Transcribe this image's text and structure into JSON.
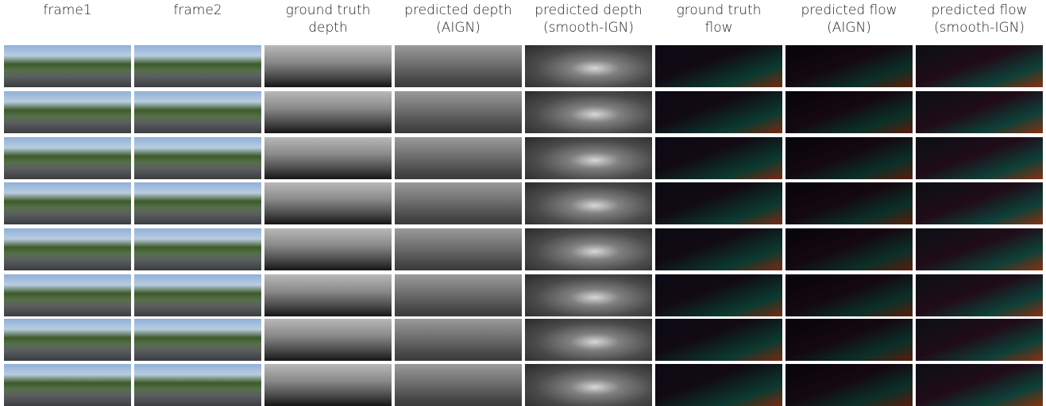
{
  "columns": [
    {
      "lines": [
        "frame1"
      ]
    },
    {
      "lines": [
        "frame2"
      ]
    },
    {
      "lines": [
        "ground truth",
        "depth"
      ]
    },
    {
      "lines": [
        "predicted depth",
        "(AIGN)"
      ]
    },
    {
      "lines": [
        "predicted depth",
        "(smooth-IGN)"
      ]
    },
    {
      "lines": [
        "ground truth",
        "flow"
      ]
    },
    {
      "lines": [
        "predicted flow",
        "(AIGN)"
      ]
    },
    {
      "lines": [
        "predicted flow",
        "(smooth-IGN)"
      ]
    }
  ]
}
